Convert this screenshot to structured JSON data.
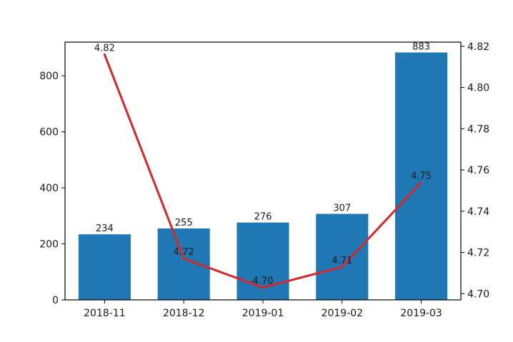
{
  "chart_data": {
    "type": "bar",
    "categories": [
      "2018-11",
      "2018-12",
      "2019-01",
      "2019-02",
      "2019-03"
    ],
    "series": [
      {
        "type": "bar",
        "axis": "left",
        "values": [
          234,
          255,
          276,
          307,
          883
        ],
        "color": "#1f77b4"
      },
      {
        "type": "line",
        "axis": "right",
        "values": [
          4.816,
          4.717,
          4.703,
          4.713,
          4.754
        ],
        "color": "#d62728"
      }
    ],
    "bar_labels": [
      "234",
      "255",
      "276",
      "307",
      "883"
    ],
    "line_labels": [
      "4.82",
      "4.72",
      "4.70",
      "4.71",
      "4.75"
    ],
    "y_left": {
      "ylim": [
        0,
        920
      ],
      "ticks": [
        0,
        200,
        400,
        600,
        800
      ],
      "tick_labels": [
        "0",
        "200",
        "400",
        "600",
        "800"
      ]
    },
    "y_right": {
      "ylim": [
        4.697,
        4.822
      ],
      "ticks": [
        4.7,
        4.72,
        4.74,
        4.76,
        4.78,
        4.8,
        4.82
      ],
      "tick_labels": [
        "4.70",
        "4.72",
        "4.74",
        "4.76",
        "4.78",
        "4.80",
        "4.82"
      ]
    },
    "title": "",
    "xlabel": "",
    "ylabel": "",
    "legend": "none",
    "grid": false
  }
}
